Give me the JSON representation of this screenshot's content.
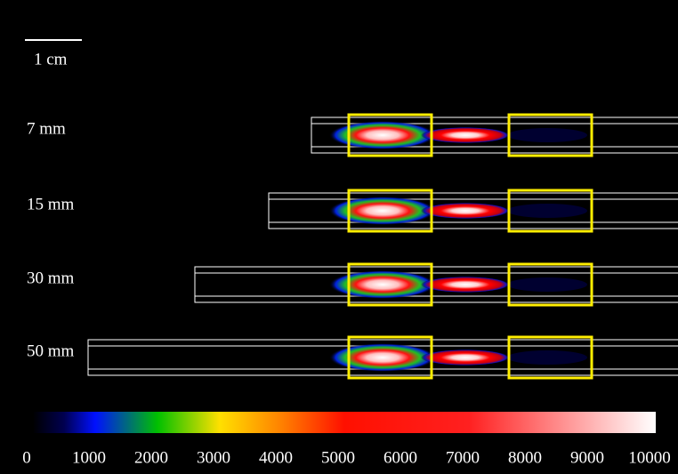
{
  "scale_bar": {
    "label": "1 cm"
  },
  "rows": [
    {
      "label": "7 mm"
    },
    {
      "label": "15 mm"
    },
    {
      "label": "30 mm"
    },
    {
      "label": "50 mm"
    }
  ],
  "colorbar": {
    "ticks": [
      0,
      1000,
      2000,
      3000,
      4000,
      5000,
      6000,
      7000,
      8000,
      9000,
      10000
    ]
  }
}
